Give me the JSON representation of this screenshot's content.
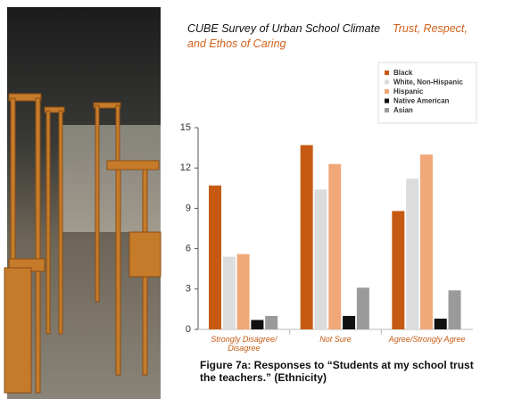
{
  "chart_data": {
    "type": "bar",
    "title": "CUBE Survey of Urban School Climate",
    "subtitle": "Trust, Respect, and Ethos of Caring",
    "caption": "Figure 7a: Responses to “Students at my school trust the teachers.” (Ethnicity)",
    "categories": [
      "Strongly Disagree/ Disagree",
      "Not Sure",
      "Agree/Strongly Agree"
    ],
    "series": [
      {
        "name": "Black",
        "color": "#c65a12",
        "values": [
          10.7,
          13.7,
          8.8
        ]
      },
      {
        "name": "White, Non-Hispanic",
        "color": "#dcdcdc",
        "values": [
          5.4,
          10.4,
          11.2
        ]
      },
      {
        "name": "Hispanic",
        "color": "#f0a878",
        "values": [
          5.6,
          12.3,
          13.0
        ]
      },
      {
        "name": "Native American",
        "color": "#111111",
        "values": [
          0.7,
          1.0,
          0.8
        ]
      },
      {
        "name": "Asian",
        "color": "#9a9a9a",
        "values": [
          1.0,
          3.1,
          2.9
        ]
      }
    ],
    "ylim": [
      0,
      15
    ],
    "yticks": [
      0,
      3,
      6,
      9,
      12,
      15
    ],
    "legend": "top-right"
  }
}
